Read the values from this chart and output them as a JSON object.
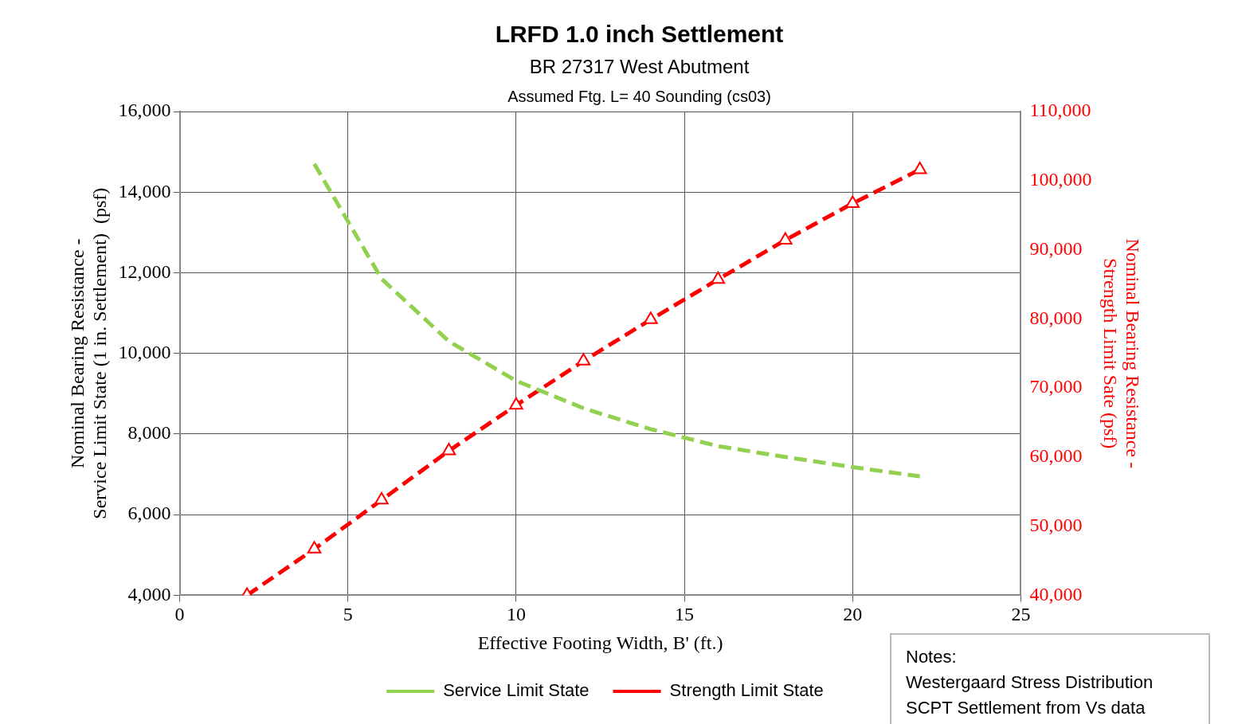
{
  "chart_data": {
    "type": "line",
    "title": "LRFD 1.0 inch Settlement",
    "subtitle": "BR 27317 West Abutment",
    "xlabel": "Effective Footing Width, B' (ft.)",
    "ylabel": "Nominal Bearing Resistance -\nService Limit State (1 in. Settlement)  (psf)",
    "y2label": "Nominal Bearing Resistance -\nStrength Limit Sate (psf)",
    "xlim": [
      0,
      25
    ],
    "xticks": [
      0,
      5,
      10,
      15,
      20,
      25
    ],
    "ylim": [
      4000,
      16000
    ],
    "yticks": [
      {
        "value": 4000,
        "label": "4,000"
      },
      {
        "value": 6000,
        "label": "6,000"
      },
      {
        "value": 8000,
        "label": "8,000"
      },
      {
        "value": 10000,
        "label": "10,000"
      },
      {
        "value": 12000,
        "label": "12,000"
      },
      {
        "value": 14000,
        "label": "14,000"
      },
      {
        "value": 16000,
        "label": "16,000"
      }
    ],
    "y2lim": [
      40000,
      110000
    ],
    "y2ticks": [
      {
        "value": 40000,
        "label": "40,000"
      },
      {
        "value": 50000,
        "label": "50,000"
      },
      {
        "value": 60000,
        "label": "60,000"
      },
      {
        "value": 70000,
        "label": "70,000"
      },
      {
        "value": 80000,
        "label": "80,000"
      },
      {
        "value": 90000,
        "label": "90,000"
      },
      {
        "value": 100000,
        "label": "100,000"
      },
      {
        "value": 110000,
        "label": "110,000"
      }
    ],
    "grid": true,
    "legend": "bottom",
    "series": [
      {
        "name": "Service Limit State",
        "color": "#92d050",
        "line_style": "dashed",
        "marker": "none",
        "x": [
          4,
          6,
          8,
          10,
          12,
          14,
          16,
          18,
          20,
          22
        ],
        "values": [
          14700,
          11850,
          10300,
          9320,
          8640,
          8120,
          7700,
          7430,
          7180,
          6950
        ]
      },
      {
        "name": "Strength Limit State",
        "color": "#ff0000",
        "axis": "y2",
        "line_style": "dashed",
        "marker": "triangle",
        "x": [
          2,
          4,
          6,
          8,
          10,
          12,
          14,
          16,
          18,
          20,
          22
        ],
        "values": [
          40000,
          46700,
          53800,
          60900,
          67500,
          73900,
          79900,
          85700,
          91400,
          96700,
          101600
        ]
      }
    ],
    "annotations": [
      "Assumed Ftg. L= 40 Sounding (cs03)",
      "Notes:\nWestergaard Stress Distribution\nSCPT Settlement from Vs data"
    ]
  }
}
